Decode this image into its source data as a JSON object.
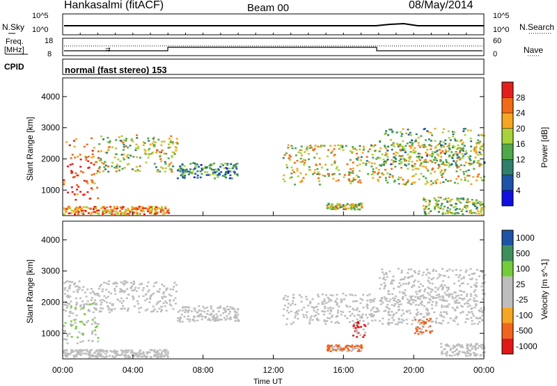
{
  "header": {
    "station": "Hankasalmi (fitACF)",
    "beam": "Beam 00",
    "date": "08/May/2014"
  },
  "strips": {
    "nsky_label": "N.Sky",
    "nsky_ticks": [
      "10^5",
      "10^0"
    ],
    "nsearch_label": "N.Search",
    "nsearch_ticks": [
      "10^5",
      "10^0"
    ],
    "freq_label_line1": "Freq.",
    "freq_label_line2": "[MHz]",
    "freq_ticks": [
      "18",
      "8"
    ],
    "nave_ticks": [
      "60",
      "0"
    ],
    "nave_label": "Nave",
    "cpid_label": "CPID",
    "cpid_text": "normal (fast stereo) 153"
  },
  "colors": {
    "power_scale": [
      "#1010e0",
      "#1e54a8",
      "#2f7f6a",
      "#4fa84a",
      "#a8d23c",
      "#f5a623",
      "#f26a18",
      "#e4201c"
    ],
    "velocity_scale": [
      "#e01818",
      "#f0641e",
      "#f5a623",
      "#bdbdbd",
      "#bdbdbd",
      "#74cc3c",
      "#3f8f5a",
      "#1e54a8"
    ],
    "ground_scatter": "#bdbdbd"
  },
  "chart_data": [
    {
      "type": "heatmap",
      "name": "power",
      "ylabel": "Slant Range [km]",
      "xlabel": "Time UT",
      "x_ticks": [
        "00:00",
        "04:00",
        "08:00",
        "12:00",
        "16:00",
        "20:00",
        "00:00"
      ],
      "x_range_hours": [
        0,
        24
      ],
      "y_ticks": [
        1000,
        2000,
        3000,
        4000
      ],
      "y_range_km": [
        180,
        4600
      ],
      "colorbar_label": "Power [dB]",
      "colorbar_ticks": [
        4,
        8,
        12,
        16,
        20,
        24,
        28
      ],
      "regions": [
        {
          "t0": 0.0,
          "t1": 2.0,
          "r0": 700,
          "r1": 2700,
          "level": 0.85
        },
        {
          "t0": 2.0,
          "t1": 6.5,
          "r0": 1600,
          "r1": 2800,
          "level": 0.55
        },
        {
          "t0": 6.5,
          "t1": 10.0,
          "r0": 1400,
          "r1": 1900,
          "level": 0.35
        },
        {
          "t0": 0.0,
          "t1": 6.0,
          "r0": 250,
          "r1": 500,
          "level": 0.75
        },
        {
          "t0": 12.5,
          "t1": 24.0,
          "r0": 1200,
          "r1": 2500,
          "level": 0.6
        },
        {
          "t0": 18.0,
          "t1": 24.0,
          "r0": 1800,
          "r1": 3000,
          "level": 0.45
        },
        {
          "t0": 15.0,
          "t1": 17.0,
          "r0": 400,
          "r1": 600,
          "level": 0.55
        },
        {
          "t0": 20.5,
          "t1": 24.0,
          "r0": 250,
          "r1": 800,
          "level": 0.5
        }
      ]
    },
    {
      "type": "heatmap",
      "name": "velocity",
      "ylabel": "Slant Range [km]",
      "xlabel": "Time UT",
      "x_ticks": [
        "00:00",
        "04:00",
        "08:00",
        "12:00",
        "16:00",
        "20:00",
        "00:00"
      ],
      "x_range_hours": [
        0,
        24
      ],
      "y_ticks": [
        1000,
        2000,
        3000,
        4000
      ],
      "y_range_km": [
        180,
        4600
      ],
      "colorbar_label": "Velocity [m s^-1]",
      "colorbar_ticks": [
        "1000",
        "500",
        "100",
        "25",
        "-25",
        "-100",
        "-500",
        "-1000"
      ],
      "regions": [
        {
          "t0": 0.0,
          "t1": 6.5,
          "r0": 1700,
          "r1": 2700,
          "level": "ground"
        },
        {
          "t0": 6.5,
          "t1": 10.0,
          "r0": 1400,
          "r1": 1900,
          "level": "ground"
        },
        {
          "t0": 0.0,
          "t1": 2.0,
          "r0": 700,
          "r1": 2000,
          "level": 100
        },
        {
          "t0": 0.0,
          "t1": 6.0,
          "r0": 250,
          "r1": 500,
          "level": 50
        },
        {
          "t0": 12.5,
          "t1": 24.0,
          "r0": 1300,
          "r1": 2300,
          "level": "ground"
        },
        {
          "t0": 18.0,
          "t1": 24.0,
          "r0": 2000,
          "r1": 3100,
          "level": "ground"
        },
        {
          "t0": 15.0,
          "t1": 17.0,
          "r0": 450,
          "r1": 650,
          "level": -150
        },
        {
          "t0": 16.5,
          "t1": 17.2,
          "r0": 900,
          "r1": 1400,
          "level": -600
        },
        {
          "t0": 20.0,
          "t1": 21.0,
          "r0": 1000,
          "r1": 1500,
          "level": -150
        },
        {
          "t0": 21.5,
          "t1": 24.0,
          "r0": 300,
          "r1": 700,
          "level": 50
        }
      ]
    }
  ]
}
